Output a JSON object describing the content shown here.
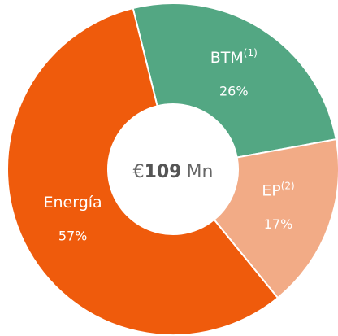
{
  "chart_data": {
    "type": "donut",
    "categories": [
      "BTM",
      "EP",
      "Energía"
    ],
    "notes": [
      "(1)",
      "(2)",
      null
    ],
    "values": [
      26,
      17,
      57
    ],
    "value_labels": [
      "26%",
      "17%",
      "57%"
    ],
    "colors": [
      "#53a783",
      "#f2ab86",
      "#ef5b0c"
    ],
    "center_prefix": "€",
    "center_value": "109",
    "center_unit": "Mn"
  }
}
